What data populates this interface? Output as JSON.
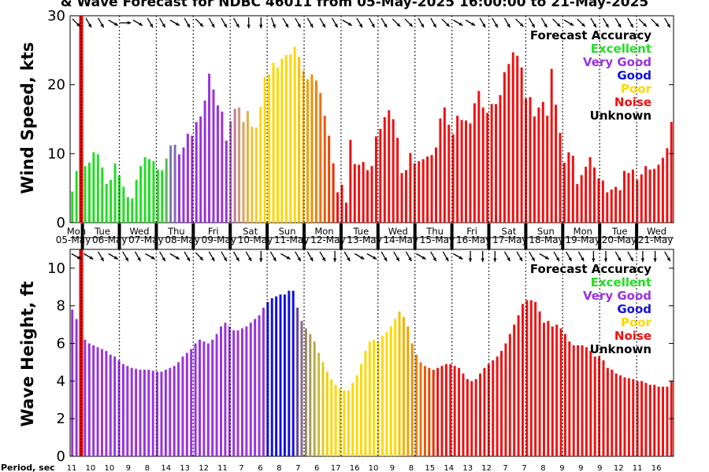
{
  "chart_data": [
    {
      "type": "bar",
      "title": "& Wave Forecast for NDBC 46011 from 05-May-2025 16:00:00 to 21-May-2025",
      "ylabel": "Wind Speed, kts",
      "ylim": [
        0,
        30
      ],
      "yticks": [
        "0",
        "10",
        "20",
        "30"
      ],
      "day_labels": [
        "Mon",
        "Tue",
        "Wed",
        "Thu",
        "Fri",
        "Sat",
        "Sun",
        "Mon",
        "Tue",
        "Wed",
        "Thu",
        "Fri",
        "Sat",
        "Sun",
        "Mon",
        "Tue",
        "Wed"
      ],
      "date_labels": [
        "05-May",
        "06-May",
        "07-May",
        "08-May",
        "09-May",
        "10-May",
        "11-May",
        "12-May",
        "13-May",
        "14-May",
        "15-May",
        "16-May",
        "17-May",
        "18-May",
        "19-May",
        "20-May",
        "21-May"
      ],
      "legend": {
        "title": "Forecast Accuracy",
        "placement": "top-right",
        "entries": [
          {
            "label": "Excellent",
            "color": "#22dd22"
          },
          {
            "label": "Very Good",
            "color": "#9933dd"
          },
          {
            "label": "Good",
            "color": "#1111dd"
          },
          {
            "label": "Poor",
            "color": "#ffd700"
          },
          {
            "label": "Noise",
            "color": "#ee1111"
          },
          {
            "label": "Unknown",
            "color": "#000000"
          }
        ]
      },
      "values": [
        4.5,
        7.5,
        10.5,
        8.2,
        8.7,
        10.2,
        9.9,
        8.0,
        5.6,
        6.2,
        8.6,
        6.8,
        5.2,
        3.7,
        3.5,
        6.2,
        8.2,
        9.5,
        9.2,
        8.9,
        7.7,
        7.6,
        9.3,
        11.2,
        11.3,
        9.9,
        10.9,
        12.9,
        12.6,
        14.6,
        15.4,
        17.7,
        21.6,
        19.3,
        17.0,
        16.1,
        11.9,
        14.7,
        16.5,
        16.7,
        14.6,
        16.2,
        13.9,
        13.8,
        16.8,
        21.1,
        21.5,
        23.2,
        22.5,
        23.8,
        24.3,
        24.4,
        25.5,
        24.0,
        22.0,
        20.8,
        21.5,
        20.6,
        18.8,
        15.5,
        12.6,
        8.6,
        4.4,
        5.5,
        2.9,
        12.0,
        8.5,
        8.4,
        8.8,
        7.6,
        8.2,
        12.5,
        13.6,
        15.3,
        16.3,
        15.0,
        12.3,
        7.2,
        7.6,
        10.1,
        8.6,
        8.9,
        9.2,
        9.6,
        9.8,
        10.9,
        15.1,
        16.7,
        14.2,
        12.8,
        15.5,
        14.9,
        14.8,
        14.4,
        17.3,
        19.1,
        16.7,
        15.9,
        17.2,
        17.2,
        18.5,
        21.8,
        23.0,
        24.7,
        24.2,
        22.5,
        18.0,
        18.2,
        15.4,
        16.7,
        17.5,
        15.5,
        22.3,
        17.1,
        13.0,
        8.7,
        10.2,
        9.7,
        5.6,
        6.9,
        8.1,
        9.5,
        8.0,
        6.4,
        6.1,
        4.4,
        4.8,
        5.2,
        4.7,
        7.5,
        7.2,
        7.7,
        6.2,
        7.0,
        8.2,
        7.7,
        7.8,
        8.4,
        9.4,
        10.8,
        14.6
      ],
      "colors": [
        "#22dd22",
        "#22dd22",
        "#22dd22",
        "#22dd22",
        "#22dd22",
        "#22dd22",
        "#22dd22",
        "#22dd22",
        "#22dd22",
        "#22dd22",
        "#22dd22",
        "#22dd22",
        "#22dd22",
        "#22dd22",
        "#22dd22",
        "#22dd22",
        "#22dd22",
        "#22dd22",
        "#22dd22",
        "#22dd22",
        "#22dd22",
        "#22dd22",
        "#55bb55",
        "#7777aa",
        "#8866bb",
        "#9933dd",
        "#9933dd",
        "#9933dd",
        "#9933dd",
        "#9933dd",
        "#9933dd",
        "#9933dd",
        "#9933dd",
        "#9933dd",
        "#9933dd",
        "#9933dd",
        "#9933dd",
        "#b05cc0",
        "#c07a9a",
        "#d09878",
        "#dca060",
        "#e6b040",
        "#f0c030",
        "#f5cc20",
        "#ffd700",
        "#ffd700",
        "#ffd700",
        "#ffd700",
        "#ffd700",
        "#ffd700",
        "#ffd700",
        "#ffd700",
        "#ffd700",
        "#f7c000",
        "#f5b000",
        "#f3a000",
        "#f19000",
        "#ef8000",
        "#ed7000",
        "#eb5a00",
        "#e94500",
        "#e73000",
        "#ee1111",
        "#ee1111",
        "#ee1111",
        "#ee1111",
        "#ee1111",
        "#ee1111",
        "#ee1111",
        "#ee1111",
        "#ee1111",
        "#ee1111",
        "#ee1111",
        "#ee1111",
        "#ee1111",
        "#ee1111",
        "#ee1111",
        "#ee1111",
        "#ee1111",
        "#ee1111",
        "#ee1111",
        "#ee1111",
        "#ee1111",
        "#ee1111",
        "#ee1111",
        "#ee1111",
        "#ee1111",
        "#ee1111",
        "#ee1111",
        "#ee1111",
        "#ee1111",
        "#ee1111",
        "#ee1111",
        "#ee1111",
        "#ee1111",
        "#ee1111",
        "#ee1111",
        "#ee1111",
        "#ee1111",
        "#ee1111",
        "#ee1111",
        "#ee1111",
        "#ee1111",
        "#ee1111",
        "#ee1111",
        "#ee1111",
        "#ee1111",
        "#ee1111",
        "#ee1111",
        "#ee1111",
        "#ee1111",
        "#ee1111",
        "#ee1111",
        "#ee1111",
        "#ee1111",
        "#ee1111",
        "#ee1111",
        "#ee1111",
        "#ee1111",
        "#ee1111",
        "#ee1111",
        "#ee1111",
        "#ee1111",
        "#ee1111",
        "#ee1111",
        "#ee1111",
        "#ee1111",
        "#ee1111",
        "#ee1111",
        "#ee1111",
        "#ee1111",
        "#ee1111",
        "#ee1111",
        "#ee1111",
        "#ee1111",
        "#ee1111",
        "#ee1111",
        "#ee1111",
        "#ee1111",
        "#ee1111",
        "#ee1111",
        "#ee1111",
        "#ee1111",
        "#ee1111",
        "#ee1111",
        "#ee1111"
      ],
      "direction_arrows_deg": [
        315,
        300,
        300,
        330,
        0,
        330,
        300,
        300,
        330,
        300,
        315,
        300,
        300,
        300,
        270,
        270,
        290,
        300,
        300,
        300,
        300,
        300,
        330,
        300,
        300,
        300,
        315,
        315,
        300,
        300,
        315,
        330,
        330,
        300,
        300,
        300,
        315,
        300,
        300,
        315,
        330,
        315,
        300,
        300,
        300,
        300,
        315,
        315,
        300
      ]
    },
    {
      "type": "bar",
      "ylabel": "Wave Height, ft",
      "ylim": [
        0,
        11
      ],
      "yticks": [
        "0",
        "2",
        "4",
        "6",
        "8",
        "10"
      ],
      "xlabel": "Period, sec",
      "period_labels": [
        "11",
        "10",
        "10",
        "9",
        "8",
        "14",
        "13",
        "12",
        "11",
        "7",
        "6",
        "8",
        "7",
        "6",
        "17",
        "16",
        "10",
        "9",
        "8",
        "15",
        "14",
        "13",
        "12",
        "7",
        "7",
        "8",
        "9",
        "9",
        "9",
        "12",
        "11",
        "16"
      ],
      "legend": {
        "title": "Forecast Accuracy",
        "placement": "top-right",
        "entries": [
          {
            "label": "Excellent",
            "color": "#22dd22"
          },
          {
            "label": "Very Good",
            "color": "#9933dd"
          },
          {
            "label": "Good",
            "color": "#1111dd"
          },
          {
            "label": "Poor",
            "color": "#ffd700"
          },
          {
            "label": "Noise",
            "color": "#ee1111"
          },
          {
            "label": "Unknown",
            "color": "#000000"
          }
        ]
      },
      "values": [
        7.8,
        7.3,
        6.4,
        6.2,
        6.0,
        5.9,
        5.8,
        5.7,
        5.6,
        5.4,
        5.3,
        5.1,
        4.9,
        4.8,
        4.7,
        4.65,
        4.6,
        4.6,
        4.6,
        4.55,
        4.5,
        4.5,
        4.6,
        4.7,
        4.8,
        5.0,
        5.3,
        5.5,
        5.7,
        6.0,
        6.2,
        6.1,
        6.0,
        6.2,
        6.5,
        6.9,
        7.1,
        6.9,
        6.7,
        6.7,
        6.8,
        6.9,
        7.1,
        7.3,
        7.5,
        7.9,
        8.2,
        8.4,
        8.5,
        8.6,
        8.6,
        8.8,
        8.8,
        7.9,
        7.2,
        6.8,
        6.5,
        6.1,
        5.5,
        5.0,
        4.5,
        4.1,
        3.8,
        3.6,
        3.5,
        3.5,
        3.9,
        4.3,
        4.9,
        5.6,
        6.1,
        6.2,
        6.1,
        6.4,
        6.6,
        6.9,
        7.3,
        7.7,
        7.4,
        6.9,
        6.0,
        5.4,
        5.0,
        4.8,
        4.7,
        4.6,
        4.7,
        4.8,
        4.9,
        4.9,
        4.8,
        4.7,
        4.4,
        4.1,
        4.0,
        4.1,
        4.4,
        4.7,
        4.9,
        5.1,
        5.3,
        5.6,
        6.0,
        6.5,
        7.0,
        7.5,
        8.1,
        8.3,
        8.3,
        8.2,
        7.7,
        7.1,
        7.2,
        6.9,
        7.0,
        6.8,
        6.5,
        6.1,
        5.9,
        5.9,
        5.9,
        5.8,
        5.6,
        5.3,
        5.3,
        5.1,
        4.7,
        4.6,
        4.4,
        4.3,
        4.2,
        4.15,
        4.1,
        4.0,
        4.0,
        3.9,
        3.8,
        3.8,
        3.7,
        3.7,
        3.7,
        4.0
      ],
      "colors": [
        "#9933dd",
        "#9933dd",
        "#9933dd",
        "#9933dd",
        "#9933dd",
        "#9933dd",
        "#9933dd",
        "#9933dd",
        "#9933dd",
        "#9933dd",
        "#9933dd",
        "#9933dd",
        "#9933dd",
        "#9933dd",
        "#9933dd",
        "#9933dd",
        "#9933dd",
        "#9933dd",
        "#9933dd",
        "#9933dd",
        "#9933dd",
        "#9933dd",
        "#9933dd",
        "#9933dd",
        "#9933dd",
        "#9933dd",
        "#9933dd",
        "#9933dd",
        "#9933dd",
        "#9933dd",
        "#9933dd",
        "#9933dd",
        "#9933dd",
        "#9933dd",
        "#9933dd",
        "#9933dd",
        "#9933dd",
        "#9933dd",
        "#9933dd",
        "#9933dd",
        "#9933dd",
        "#9933dd",
        "#9933dd",
        "#9933dd",
        "#9933dd",
        "#9933dd",
        "#1111dd",
        "#1111dd",
        "#1111dd",
        "#1111dd",
        "#1111dd",
        "#1111dd",
        "#1111dd",
        "#6644aa",
        "#886688",
        "#998866",
        "#aa9955",
        "#bbaa44",
        "#ccbb33",
        "#ddc822",
        "#eed011",
        "#ffd700",
        "#ffd700",
        "#ffd700",
        "#ffd700",
        "#ffd700",
        "#ffd700",
        "#ffd700",
        "#ffd700",
        "#ffd700",
        "#ffd700",
        "#ffd700",
        "#ffd700",
        "#ffd700",
        "#ffd700",
        "#ffd700",
        "#ffd700",
        "#f5c000",
        "#f3b000",
        "#f1a000",
        "#ef9000",
        "#ed8000",
        "#eb7000",
        "#e95a00",
        "#e74500",
        "#e53000",
        "#ee1111",
        "#ee1111",
        "#ee1111",
        "#ee1111",
        "#ee1111",
        "#ee1111",
        "#ee1111",
        "#ee1111",
        "#ee1111",
        "#ee1111",
        "#ee1111",
        "#ee1111",
        "#ee1111",
        "#ee1111",
        "#ee1111",
        "#ee1111",
        "#ee1111",
        "#ee1111",
        "#ee1111",
        "#ee1111",
        "#ee1111",
        "#ee1111",
        "#ee1111",
        "#ee1111",
        "#ee1111",
        "#ee1111",
        "#ee1111",
        "#ee1111",
        "#ee1111",
        "#ee1111",
        "#ee1111",
        "#ee1111",
        "#ee1111",
        "#ee1111",
        "#ee1111",
        "#ee1111",
        "#ee1111",
        "#ee1111",
        "#ee1111",
        "#ee1111",
        "#ee1111",
        "#ee1111",
        "#ee1111",
        "#ee1111",
        "#ee1111",
        "#ee1111",
        "#ee1111",
        "#ee1111",
        "#ee1111",
        "#ee1111",
        "#ee1111",
        "#ee1111",
        "#ee1111",
        "#ee1111",
        "#ee1111",
        "#ee1111",
        "#ee1111",
        "#ee1111",
        "#ee1111",
        "#ee1111",
        "#ee1111",
        "#ee1111",
        "#ee1111"
      ],
      "direction_arrows_deg": [
        330,
        330,
        300,
        330,
        300,
        300,
        330,
        300,
        330,
        300,
        315,
        300,
        300,
        300,
        300,
        270,
        300,
        330,
        300,
        300,
        300,
        270,
        300,
        330,
        330,
        300,
        300,
        300,
        330,
        300,
        300,
        330,
        270,
        270,
        270,
        300,
        300,
        300,
        330,
        300,
        300,
        300,
        270,
        270,
        300,
        300,
        270,
        270,
        300
      ]
    }
  ]
}
